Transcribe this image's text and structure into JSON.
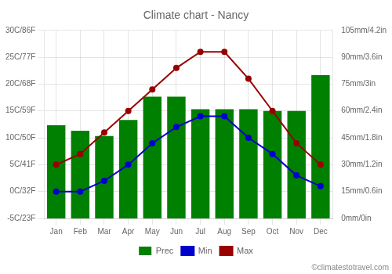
{
  "chart_data": {
    "type": "bar",
    "title": "Climate chart - Nancy",
    "categories": [
      "Jan",
      "Feb",
      "Mar",
      "Apr",
      "May",
      "Jun",
      "Jul",
      "Aug",
      "Sep",
      "Oct",
      "Nov",
      "Dec"
    ],
    "series": [
      {
        "name": "Prec",
        "type": "bar",
        "axis": "y2",
        "color": "#008000",
        "values": [
          52,
          49,
          46,
          55,
          68,
          68,
          61,
          61,
          61,
          60,
          60,
          80
        ]
      },
      {
        "name": "Min",
        "type": "line",
        "marker": "circle",
        "color": "#0000cc",
        "values": [
          0,
          0,
          2,
          5,
          9,
          12,
          14,
          14,
          10,
          7,
          3,
          1
        ]
      },
      {
        "name": "Max",
        "type": "line",
        "marker": "circle",
        "color": "#990000",
        "values": [
          5,
          7,
          11,
          15,
          19,
          23,
          26,
          26,
          21,
          15,
          9,
          5
        ]
      }
    ],
    "ylim": [
      -5,
      30
    ],
    "yticks": [
      {
        "value": -5,
        "label": "-5C/23F"
      },
      {
        "value": 0,
        "label": "0C/32F"
      },
      {
        "value": 5,
        "label": "5C/41F"
      },
      {
        "value": 10,
        "label": "10C/50F"
      },
      {
        "value": 15,
        "label": "15C/59F"
      },
      {
        "value": 20,
        "label": "20C/68F"
      },
      {
        "value": 25,
        "label": "25C/77F"
      },
      {
        "value": 30,
        "label": "30C/86F"
      }
    ],
    "y2lim": [
      0,
      105
    ],
    "y2ticks": [
      {
        "value": 0,
        "label": "0mm/0in"
      },
      {
        "value": 15,
        "label": "15mm/0.6in"
      },
      {
        "value": 30,
        "label": "30mm/1.2in"
      },
      {
        "value": 45,
        "label": "45mm/1.8in"
      },
      {
        "value": 60,
        "label": "60mm/2.4in"
      },
      {
        "value": 75,
        "label": "75mm/3in"
      },
      {
        "value": 90,
        "label": "90mm/3.6in"
      },
      {
        "value": 105,
        "label": "105mm/4.2in"
      }
    ],
    "grid": true,
    "legend": "bottom",
    "annotations": [
      "©climatestotravel.com"
    ]
  }
}
